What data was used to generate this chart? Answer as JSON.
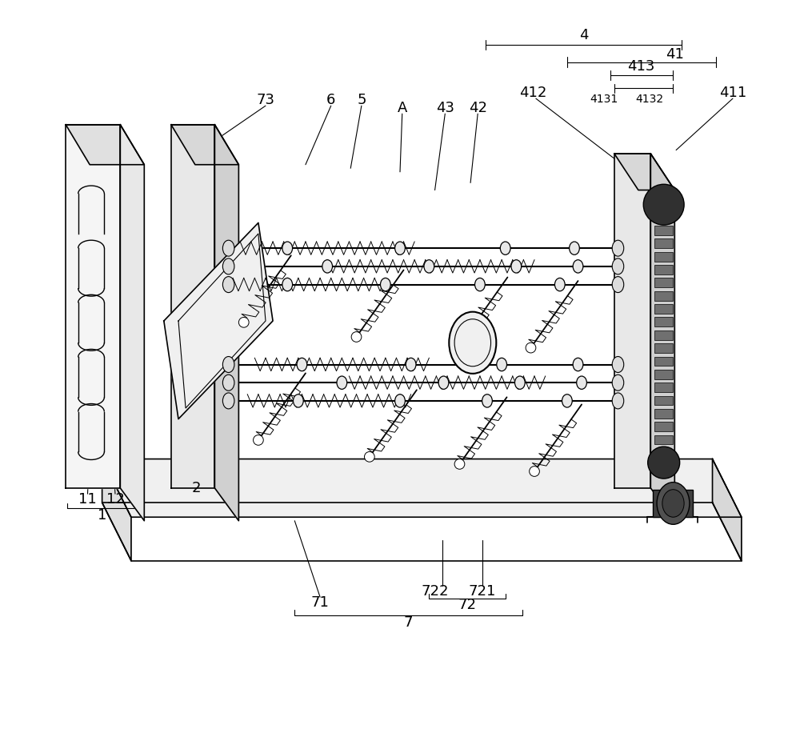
{
  "bg_color": "#ffffff",
  "line_color": "#000000",
  "fontsize": 13
}
